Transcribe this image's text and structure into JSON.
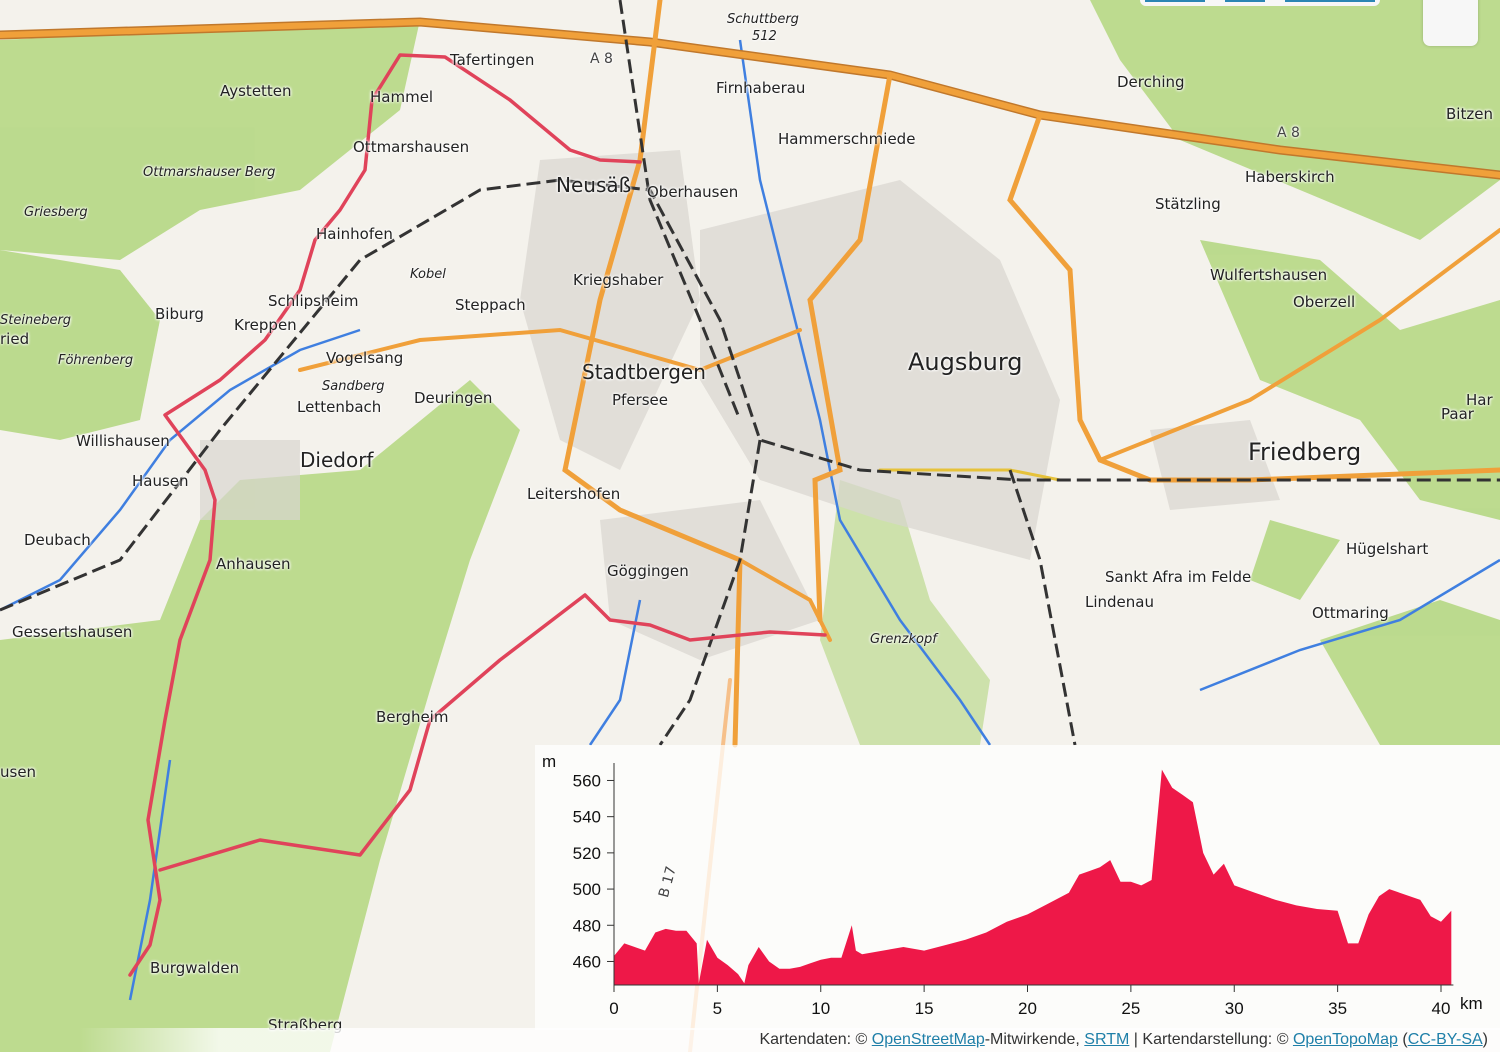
{
  "map": {
    "places": [
      "Schuttberg",
      "512",
      "Tafertingen",
      "A 8",
      "Firnhaberau",
      "Derching",
      "Bitzen",
      "Aystetten",
      "Hammel",
      "Hammerschmiede",
      "A 8",
      "Ottmarshausen",
      "Ottmarshauser Berg",
      "Neusäß",
      "Oberhausen",
      "Haberskirch",
      "Griesberg",
      "Stätzling",
      "Hainhofen",
      "Kobel",
      "Kriegshaber",
      "Wulfertshausen",
      "Oberzell",
      "Schlipsheim",
      "Steppach",
      "Biburg",
      "Kreppen",
      "Steineberg",
      "ried",
      "Vogelsang",
      "Augsburg",
      "Föhrenberg",
      "Sandberg",
      "Stadtbergen",
      "Lettenbach",
      "Deuringen",
      "Pfersee",
      "Paar",
      "Har",
      "Willishausen",
      "Diedorf",
      "Friedberg",
      "Hausen",
      "Leitershofen",
      "Deubach",
      "Hügelshart",
      "Anhausen",
      "Göggingen",
      "Sankt Afra im Felde",
      "Lindenau",
      "Ottmaring",
      "Gessertshausen",
      "Grenzkopf",
      "Bergheim",
      "usen",
      "B 17",
      "Burgwalden",
      "Straßberg"
    ],
    "route_color": "#e0435a",
    "colors": {
      "forest": "#b9d98a",
      "motorway": "#f0a03a",
      "water": "#3f7fe0",
      "rail": "#333333"
    }
  },
  "chart_data": {
    "type": "area",
    "title": "",
    "xlabel": "km",
    "ylabel": "m",
    "xlim": [
      0,
      40.6
    ],
    "ylim": [
      447,
      570
    ],
    "xticks": [
      0,
      5,
      10,
      15,
      20,
      25,
      30,
      35,
      40
    ],
    "yticks": [
      460,
      480,
      500,
      520,
      540,
      560
    ],
    "grid": false,
    "color": "#ee1848",
    "x": [
      0,
      0.5,
      1,
      1.5,
      2,
      2.5,
      3,
      3.5,
      4,
      4.1,
      4.5,
      5,
      5.5,
      6,
      6.3,
      6.5,
      7,
      7.5,
      8,
      8.5,
      9,
      9.5,
      10,
      10.5,
      11,
      11.5,
      11.7,
      12,
      13,
      14,
      15,
      16,
      17,
      18,
      19,
      20,
      21,
      22,
      22.5,
      23,
      23.5,
      24,
      24.5,
      25,
      25.5,
      26,
      26.5,
      27,
      27.5,
      28,
      28.5,
      29,
      29.5,
      30,
      31,
      32,
      33,
      34,
      35,
      35.5,
      36,
      36.5,
      37,
      37.5,
      38,
      39,
      39.5,
      40,
      40.5
    ],
    "y": [
      463,
      470,
      468,
      466,
      476,
      478,
      477,
      477,
      470,
      448,
      472,
      462,
      458,
      453,
      448,
      458,
      468,
      460,
      456,
      456,
      457,
      459,
      461,
      462,
      462,
      480,
      466,
      464,
      466,
      468,
      466,
      469,
      472,
      476,
      482,
      486,
      492,
      498,
      508,
      510,
      512,
      516,
      504,
      504,
      502,
      505,
      566,
      556,
      552,
      548,
      520,
      508,
      514,
      502,
      498,
      494,
      491,
      489,
      488,
      470,
      470,
      486,
      496,
      500,
      498,
      494,
      485,
      482,
      488
    ]
  },
  "attribution": {
    "prefix": "Kartendaten: © ",
    "osm": "OpenStreetMap",
    "mid": "-Mitwirkende, ",
    "srtm": "SRTM",
    "sep": " | Kartendarstellung: © ",
    "otm": "OpenTopoMap",
    "open": " (",
    "license": "CC-BY-SA",
    "close": ")"
  }
}
